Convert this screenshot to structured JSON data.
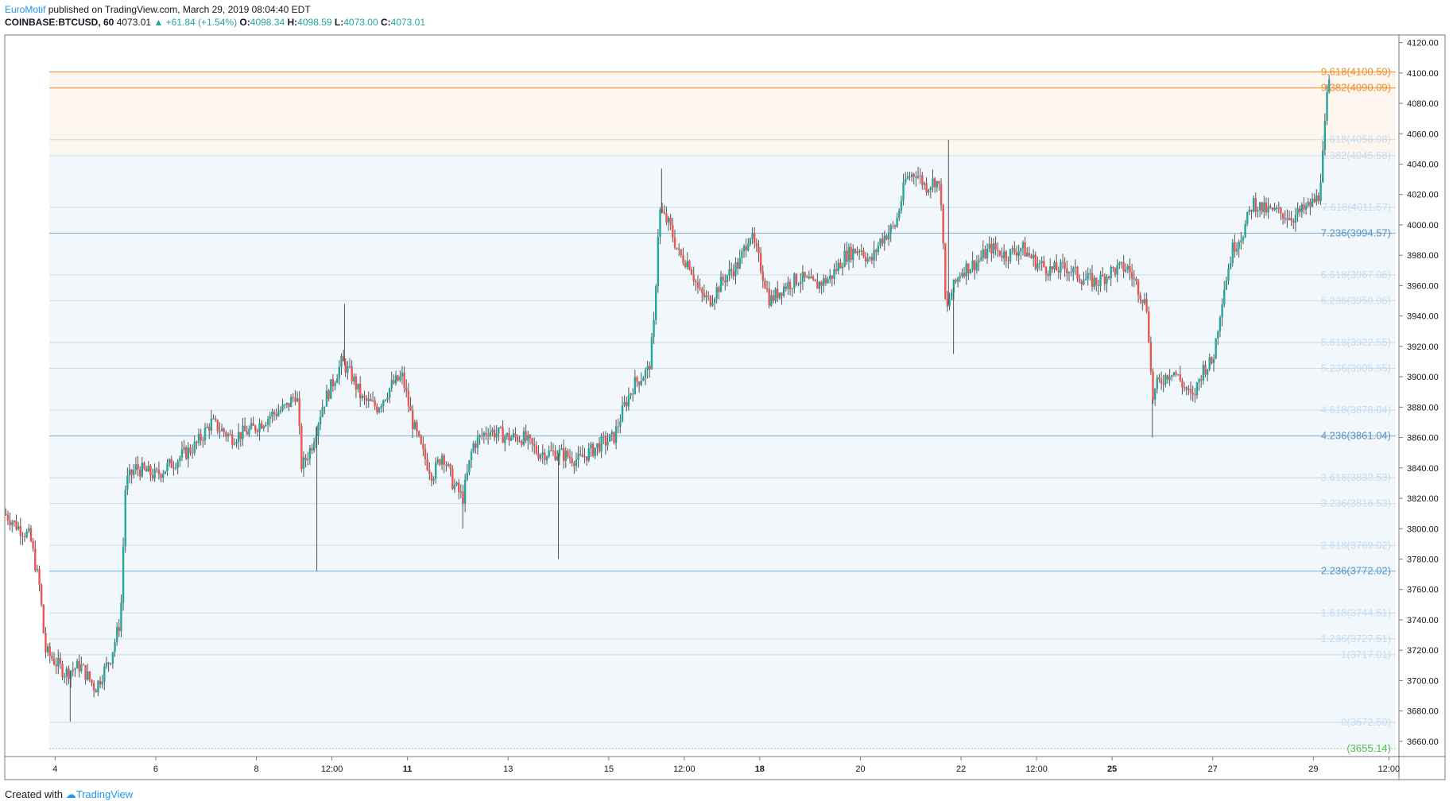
{
  "header": {
    "author": "EuroMotif",
    "published": " published on TradingView.com, March 29, 2019 08:04:40 EDT",
    "symbol": "COINBASE:BTCUSD, 60",
    "last": "4073.01",
    "change": "+61.84 (+1.54%)",
    "o_label": "O:",
    "o": "4098.34",
    "h_label": "H:",
    "h": "4098.59",
    "l_label": "L:",
    "l": "4073.00",
    "c_label": "C:",
    "c": "4073.01"
  },
  "footer": {
    "created": "Created with",
    "brand": "TradingView"
  },
  "colors": {
    "up": "#26a69a",
    "down": "#ef5350",
    "orange": "#f28c28",
    "fib_blue": "#7aaed6",
    "fib_light": "#c7dbeb",
    "green_dot": "#8fd18f",
    "grid": "#f0f3fa",
    "axis": "#787b86"
  },
  "chart_data": {
    "type": "candlestick",
    "ylim": [
      3650,
      4125
    ],
    "yticks": [
      3660,
      3680,
      3700,
      3720,
      3740,
      3760,
      3780,
      3800,
      3820,
      3840,
      3860,
      3880,
      3900,
      3920,
      3940,
      3960,
      3980,
      4000,
      4020,
      4040,
      4060,
      4080,
      4100,
      4120
    ],
    "x_range_days": [
      3.0,
      30.7
    ],
    "xticks": [
      {
        "day": 4.0,
        "label": "4",
        "bold": false
      },
      {
        "day": 6.0,
        "label": "6",
        "bold": false
      },
      {
        "day": 8.0,
        "label": "8",
        "bold": false
      },
      {
        "day": 9.5,
        "label": "12:00",
        "bold": false
      },
      {
        "day": 11.0,
        "label": "11",
        "bold": true
      },
      {
        "day": 13.0,
        "label": "13",
        "bold": false
      },
      {
        "day": 15.0,
        "label": "15",
        "bold": false
      },
      {
        "day": 16.5,
        "label": "12:00",
        "bold": false
      },
      {
        "day": 18.0,
        "label": "18",
        "bold": true
      },
      {
        "day": 20.0,
        "label": "20",
        "bold": false
      },
      {
        "day": 22.0,
        "label": "22",
        "bold": false
      },
      {
        "day": 23.5,
        "label": "12:00",
        "bold": false
      },
      {
        "day": 25.0,
        "label": "25",
        "bold": true
      },
      {
        "day": 27.0,
        "label": "27",
        "bold": false
      },
      {
        "day": 29.0,
        "label": "29",
        "bold": false
      },
      {
        "day": 30.5,
        "label": "12:00",
        "bold": false
      }
    ],
    "fib_levels": [
      {
        "label": "9.618(4100.59)",
        "price": 4100.59,
        "style": "orange"
      },
      {
        "label": "9.382(4090.09)",
        "price": 4090.09,
        "style": "orange"
      },
      {
        "label": "8.618(4056.08)",
        "price": 4056.08,
        "style": "light"
      },
      {
        "label": "8.382(4045.58)",
        "price": 4045.58,
        "style": "light"
      },
      {
        "label": "7.618(4011.57)",
        "price": 4011.57,
        "style": "light"
      },
      {
        "label": "7.236(3994.57)",
        "price": 3994.57,
        "style": "blue"
      },
      {
        "label": "6.618(3967.06)",
        "price": 3967.06,
        "style": "light"
      },
      {
        "label": "6.236(3950.06)",
        "price": 3950.06,
        "style": "light"
      },
      {
        "label": "5.618(3922.55)",
        "price": 3922.55,
        "style": "light"
      },
      {
        "label": "5.236(3905.55)",
        "price": 3905.55,
        "style": "light"
      },
      {
        "label": "4.618(3878.04)",
        "price": 3878.04,
        "style": "light"
      },
      {
        "label": "4.236(3861.04)",
        "price": 3861.04,
        "style": "blue"
      },
      {
        "label": "3.618(3833.53)",
        "price": 3833.53,
        "style": "light"
      },
      {
        "label": "3.236(3816.53)",
        "price": 3816.53,
        "style": "light"
      },
      {
        "label": "2.618(3789.02)",
        "price": 3789.02,
        "style": "light"
      },
      {
        "label": "2.236(3772.02)",
        "price": 3772.02,
        "style": "blue"
      },
      {
        "label": "1.618(3744.51)",
        "price": 3744.51,
        "style": "light"
      },
      {
        "label": "1.236(3727.51)",
        "price": 3727.51,
        "style": "light"
      },
      {
        "label": "1(3717.01)",
        "price": 3717.01,
        "style": "light"
      },
      {
        "label": "0(3672.50)",
        "price": 3672.5,
        "style": "light"
      },
      {
        "label": "(3655.14)",
        "price": 3655.14,
        "style": "green"
      }
    ],
    "price_path": [
      [
        3.0,
        3810
      ],
      [
        3.3,
        3800
      ],
      [
        3.5,
        3795
      ],
      [
        3.7,
        3760
      ],
      [
        3.8,
        3720
      ],
      [
        4.2,
        3705
      ],
      [
        4.5,
        3710
      ],
      [
        4.8,
        3695
      ],
      [
        5.1,
        3715
      ],
      [
        5.3,
        3740
      ],
      [
        5.4,
        3830
      ],
      [
        5.6,
        3840
      ],
      [
        6.0,
        3835
      ],
      [
        6.4,
        3845
      ],
      [
        6.8,
        3855
      ],
      [
        7.1,
        3870
      ],
      [
        7.5,
        3860
      ],
      [
        7.9,
        3865
      ],
      [
        8.3,
        3875
      ],
      [
        8.6,
        3880
      ],
      [
        8.8,
        3890
      ],
      [
        8.9,
        3840
      ],
      [
        9.1,
        3855
      ],
      [
        9.3,
        3880
      ],
      [
        9.5,
        3895
      ],
      [
        9.7,
        3910
      ],
      [
        9.9,
        3900
      ],
      [
        10.1,
        3885
      ],
      [
        10.4,
        3880
      ],
      [
        10.7,
        3895
      ],
      [
        10.9,
        3900
      ],
      [
        11.1,
        3870
      ],
      [
        11.3,
        3850
      ],
      [
        11.5,
        3835
      ],
      [
        11.7,
        3850
      ],
      [
        11.9,
        3830
      ],
      [
        12.1,
        3820
      ],
      [
        12.3,
        3855
      ],
      [
        12.6,
        3865
      ],
      [
        13.0,
        3860
      ],
      [
        13.3,
        3860
      ],
      [
        13.6,
        3850
      ],
      [
        14.0,
        3850
      ],
      [
        14.4,
        3845
      ],
      [
        14.8,
        3855
      ],
      [
        15.1,
        3860
      ],
      [
        15.3,
        3880
      ],
      [
        15.5,
        3895
      ],
      [
        15.8,
        3905
      ],
      [
        15.9,
        3935
      ],
      [
        16.0,
        4010
      ],
      [
        16.2,
        4000
      ],
      [
        16.4,
        3980
      ],
      [
        16.6,
        3975
      ],
      [
        16.8,
        3955
      ],
      [
        17.0,
        3950
      ],
      [
        17.3,
        3965
      ],
      [
        17.6,
        3975
      ],
      [
        17.8,
        3995
      ],
      [
        18.0,
        3975
      ],
      [
        18.2,
        3950
      ],
      [
        18.5,
        3960
      ],
      [
        18.8,
        3965
      ],
      [
        19.1,
        3960
      ],
      [
        19.4,
        3965
      ],
      [
        19.7,
        3980
      ],
      [
        20.0,
        3985
      ],
      [
        20.2,
        3975
      ],
      [
        20.4,
        3990
      ],
      [
        20.7,
        4000
      ],
      [
        20.9,
        4030
      ],
      [
        21.1,
        4035
      ],
      [
        21.3,
        4025
      ],
      [
        21.5,
        4030
      ],
      [
        21.6,
        4020
      ],
      [
        21.7,
        3940
      ],
      [
        21.8,
        3955
      ],
      [
        22.0,
        3970
      ],
      [
        22.3,
        3975
      ],
      [
        22.6,
        3985
      ],
      [
        22.9,
        3980
      ],
      [
        23.2,
        3985
      ],
      [
        23.5,
        3975
      ],
      [
        23.8,
        3970
      ],
      [
        24.1,
        3972
      ],
      [
        24.4,
        3965
      ],
      [
        24.7,
        3962
      ],
      [
        25.0,
        3970
      ],
      [
        25.3,
        3972
      ],
      [
        25.5,
        3960
      ],
      [
        25.7,
        3945
      ],
      [
        25.8,
        3885
      ],
      [
        25.9,
        3895
      ],
      [
        26.2,
        3905
      ],
      [
        26.4,
        3895
      ],
      [
        26.6,
        3885
      ],
      [
        26.8,
        3905
      ],
      [
        27.0,
        3910
      ],
      [
        27.2,
        3955
      ],
      [
        27.4,
        3985
      ],
      [
        27.6,
        3995
      ],
      [
        27.8,
        4015
      ],
      [
        28.0,
        4010
      ],
      [
        28.3,
        4008
      ],
      [
        28.6,
        4005
      ],
      [
        28.9,
        4012
      ],
      [
        29.1,
        4018
      ],
      [
        29.2,
        4050
      ],
      [
        29.3,
        4098
      ],
      [
        29.35,
        4073
      ]
    ],
    "extreme_wicks": [
      {
        "day": 9.2,
        "low": 3772
      },
      {
        "day": 14.0,
        "low": 3780
      },
      {
        "day": 12.1,
        "low": 3800
      },
      {
        "day": 21.85,
        "low": 3915
      },
      {
        "day": 21.75,
        "high": 4056
      },
      {
        "day": 25.8,
        "low": 3860
      },
      {
        "day": 4.3,
        "low": 3673
      },
      {
        "day": 9.75,
        "high": 3948
      },
      {
        "day": 16.05,
        "high": 4037
      }
    ]
  }
}
